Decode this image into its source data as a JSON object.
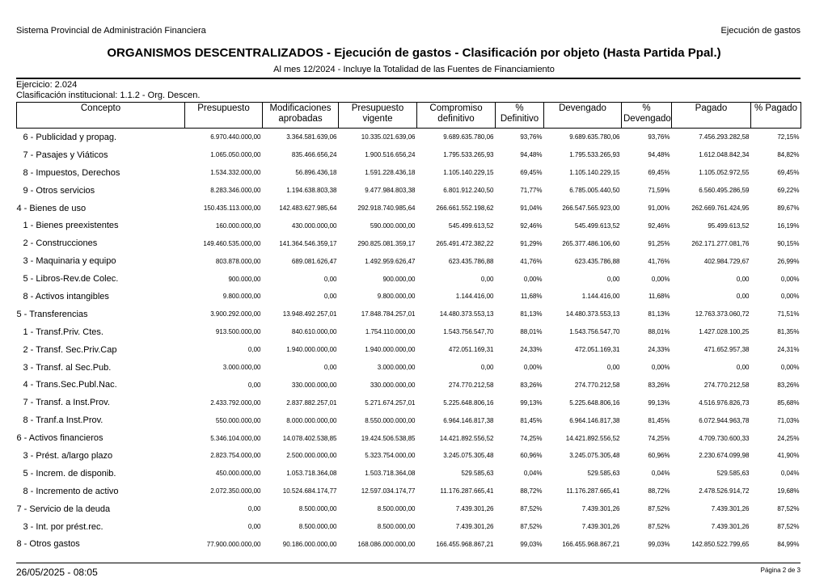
{
  "header": {
    "left": "Sistema Provincial de Administración Financiera",
    "right": "Ejecución de gastos"
  },
  "title": "ORGANISMOS DESCENTRALIZADOS - Ejecución de gastos - Clasificación por objeto (Hasta Partida Ppal.)",
  "subtitle": "Al mes 12/2024 - Incluye la Totalidad de las Fuentes de Financiamiento",
  "info": {
    "exercise": "Ejercicio: 2.024",
    "classification": "Clasificación institucional: 1.1.2 - Org. Descen."
  },
  "table": {
    "columns": [
      "Concepto",
      "Presupuesto",
      "Modificaciones aprobadas",
      "Presupuesto vigente",
      "Compromiso definitivo",
      "% Definitivo",
      "Devengado",
      "% Devengado",
      "Pagado",
      "% Pagado"
    ],
    "rows": [
      [
        "6 - Publicidad y propag.",
        "6.970.440.000,00",
        "3.364.581.639,06",
        "10.335.021.639,06",
        "9.689.635.780,06",
        "93,76%",
        "9.689.635.780,06",
        "93,76%",
        "7.456.293.282,58",
        "72,15%"
      ],
      [
        "7 - Pasajes y Viáticos",
        "1.065.050.000,00",
        "835.466.656,24",
        "1.900.516.656,24",
        "1.795.533.265,93",
        "94,48%",
        "1.795.533.265,93",
        "94,48%",
        "1.612.048.842,34",
        "84,82%"
      ],
      [
        "8 - Impuestos, Derechos",
        "1.534.332.000,00",
        "56.896.436,18",
        "1.591.228.436,18",
        "1.105.140.229,15",
        "69,45%",
        "1.105.140.229,15",
        "69,45%",
        "1.105.052.972,55",
        "69,45%"
      ],
      [
        "9 - Otros servicios",
        "8.283.346.000,00",
        "1.194.638.803,38",
        "9.477.984.803,38",
        "6.801.912.240,50",
        "71,77%",
        "6.785.005.440,50",
        "71,59%",
        "6.560.495.286,59",
        "69,22%"
      ],
      [
        "4 - Bienes de uso",
        "150.435.113.000,00",
        "142.483.627.985,64",
        "292.918.740.985,64",
        "266.661.552.198,62",
        "91,04%",
        "266.547.565.923,00",
        "91,00%",
        "262.669.761.424,95",
        "89,67%"
      ],
      [
        "1 - Bienes preexistentes",
        "160.000.000,00",
        "430.000.000,00",
        "590.000.000,00",
        "545.499.613,52",
        "92,46%",
        "545.499.613,52",
        "92,46%",
        "95.499.613,52",
        "16,19%"
      ],
      [
        "2 - Construcciones",
        "149.460.535.000,00",
        "141.364.546.359,17",
        "290.825.081.359,17",
        "265.491.472.382,22",
        "91,29%",
        "265.377.486.106,60",
        "91,25%",
        "262.171.277.081,76",
        "90,15%"
      ],
      [
        "3 - Maquinaria y equipo",
        "803.878.000,00",
        "689.081.626,47",
        "1.492.959.626,47",
        "623.435.786,88",
        "41,76%",
        "623.435.786,88",
        "41,76%",
        "402.984.729,67",
        "26,99%"
      ],
      [
        "5 - Libros-Rev.de Colec.",
        "900.000,00",
        "0,00",
        "900.000,00",
        "0,00",
        "0,00%",
        "0,00",
        "0,00%",
        "0,00",
        "0,00%"
      ],
      [
        "8 - Activos intangibles",
        "9.800.000,00",
        "0,00",
        "9.800.000,00",
        "1.144.416,00",
        "11,68%",
        "1.144.416,00",
        "11,68%",
        "0,00",
        "0,00%"
      ],
      [
        "5 - Transferencias",
        "3.900.292.000,00",
        "13.948.492.257,01",
        "17.848.784.257,01",
        "14.480.373.553,13",
        "81,13%",
        "14.480.373.553,13",
        "81,13%",
        "12.763.373.060,72",
        "71,51%"
      ],
      [
        "1 - Transf.Priv. Ctes.",
        "913.500.000,00",
        "840.610.000,00",
        "1.754.110.000,00",
        "1.543.756.547,70",
        "88,01%",
        "1.543.756.547,70",
        "88,01%",
        "1.427.028.100,25",
        "81,35%"
      ],
      [
        "2 - Transf. Sec.Priv.Cap",
        "0,00",
        "1.940.000.000,00",
        "1.940.000.000,00",
        "472.051.169,31",
        "24,33%",
        "472.051.169,31",
        "24,33%",
        "471.652.957,38",
        "24,31%"
      ],
      [
        "3 - Transf. al Sec.Pub.",
        "3.000.000,00",
        "0,00",
        "3.000.000,00",
        "0,00",
        "0,00%",
        "0,00",
        "0,00%",
        "0,00",
        "0,00%"
      ],
      [
        "4 - Trans.Sec.Publ.Nac.",
        "0,00",
        "330.000.000,00",
        "330.000.000,00",
        "274.770.212,58",
        "83,26%",
        "274.770.212,58",
        "83,26%",
        "274.770.212,58",
        "83,26%"
      ],
      [
        "7 - Transf. a Inst.Prov.",
        "2.433.792.000,00",
        "2.837.882.257,01",
        "5.271.674.257,01",
        "5.225.648.806,16",
        "99,13%",
        "5.225.648.806,16",
        "99,13%",
        "4.516.976.826,73",
        "85,68%"
      ],
      [
        "8 - Tranf.a Inst.Prov.",
        "550.000.000,00",
        "8.000.000.000,00",
        "8.550.000.000,00",
        "6.964.146.817,38",
        "81,45%",
        "6.964.146.817,38",
        "81,45%",
        "6.072.944.963,78",
        "71,03%"
      ],
      [
        "6 - Activos financieros",
        "5.346.104.000,00",
        "14.078.402.538,85",
        "19.424.506.538,85",
        "14.421.892.556,52",
        "74,25%",
        "14.421.892.556,52",
        "74,25%",
        "4.709.730.600,33",
        "24,25%"
      ],
      [
        "3 - Prést. a/largo plazo",
        "2.823.754.000,00",
        "2.500.000.000,00",
        "5.323.754.000,00",
        "3.245.075.305,48",
        "60,96%",
        "3.245.075.305,48",
        "60,96%",
        "2.230.674.099,98",
        "41,90%"
      ],
      [
        "5 - Increm. de disponib.",
        "450.000.000,00",
        "1.053.718.364,08",
        "1.503.718.364,08",
        "529.585,63",
        "0,04%",
        "529.585,63",
        "0,04%",
        "529.585,63",
        "0,04%"
      ],
      [
        "8 - Incremento de activo",
        "2.072.350.000,00",
        "10.524.684.174,77",
        "12.597.034.174,77",
        "11.176.287.665,41",
        "88,72%",
        "11.176.287.665,41",
        "88,72%",
        "2.478.526.914,72",
        "19,68%"
      ],
      [
        "7 - Servicio de la deuda",
        "0,00",
        "8.500.000,00",
        "8.500.000,00",
        "7.439.301,26",
        "87,52%",
        "7.439.301,26",
        "87,52%",
        "7.439.301,26",
        "87,52%"
      ],
      [
        "3 - Int. por prést.rec.",
        "0,00",
        "8.500.000,00",
        "8.500.000,00",
        "7.439.301,26",
        "87,52%",
        "7.439.301,26",
        "87,52%",
        "7.439.301,26",
        "87,52%"
      ],
      [
        "8 - Otros gastos",
        "77.900.000.000,00",
        "90.186.000.000,00",
        "168.086.000.000,00",
        "166.455.968.867,21",
        "99,03%",
        "166.455.968.867,21",
        "99,03%",
        "142.850.522.799,65",
        "84,99%"
      ]
    ]
  },
  "footer": {
    "date": "26/05/2025 - 08:05",
    "page": "Página 2 de 3"
  }
}
